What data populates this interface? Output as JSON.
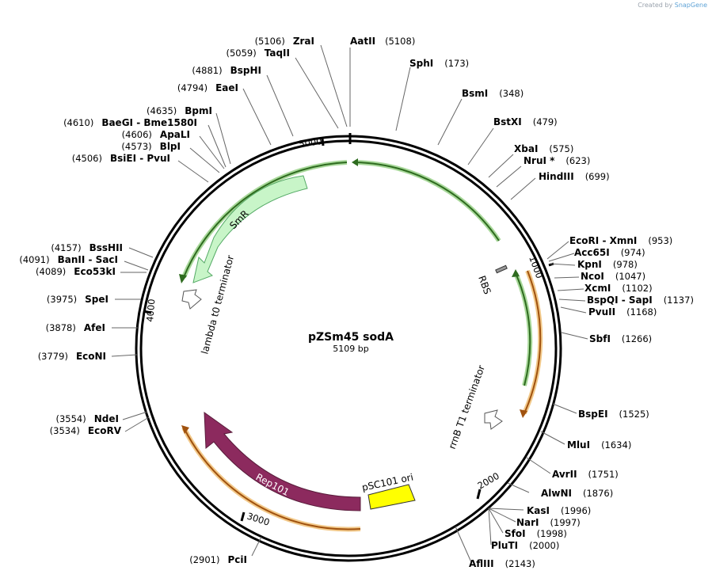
{
  "credit": {
    "prefix": "Created by",
    "brand": "SnapGene"
  },
  "plasmid": {
    "name": "pZSm45 sodA",
    "size": 5109,
    "size_label": "5109 bp"
  },
  "tick_labels": [
    "1000",
    "2000",
    "3000",
    "4000",
    "5000"
  ],
  "colors": {
    "backbone": "#000000",
    "green": "#2e8b2e",
    "orange": "#e8a030",
    "rep": "#8c2a5e",
    "ori": "#ffff00",
    "smr": "#c8f5c8"
  },
  "sites": [
    {
      "label": "AatII",
      "pos": "(5108)"
    },
    {
      "label": "SphI",
      "pos": "(173)"
    },
    {
      "label": "BsmI",
      "pos": "(348)"
    },
    {
      "label": "BstXI",
      "pos": "(479)"
    },
    {
      "label": "XbaI",
      "pos": "(575)"
    },
    {
      "label": "NruI *",
      "pos": "(623)"
    },
    {
      "label": "HindIII",
      "pos": "(699)"
    },
    {
      "label": "EcoRI  - XmnI",
      "pos": "(953)"
    },
    {
      "label": "Acc65I",
      "pos": "(974)"
    },
    {
      "label": "KpnI",
      "pos": "(978)"
    },
    {
      "label": "NcoI",
      "pos": "(1047)"
    },
    {
      "label": "XcmI",
      "pos": "(1102)"
    },
    {
      "label": "BspQI  - SapI",
      "pos": "(1137)"
    },
    {
      "label": "PvuII",
      "pos": "(1168)"
    },
    {
      "label": "SbfI",
      "pos": "(1266)"
    },
    {
      "label": "BspEI",
      "pos": "(1525)"
    },
    {
      "label": "MluI",
      "pos": "(1634)"
    },
    {
      "label": "AvrII",
      "pos": "(1751)"
    },
    {
      "label": "AlwNI",
      "pos": "(1876)"
    },
    {
      "label": "KasI",
      "pos": "(1996)"
    },
    {
      "label": "NarI",
      "pos": "(1997)"
    },
    {
      "label": "SfoI",
      "pos": "(1998)"
    },
    {
      "label": "PluTI",
      "pos": "(2000)"
    },
    {
      "label": "AflIII",
      "pos": "(2143)"
    },
    {
      "label": "ZraI",
      "pos": "(5106)"
    },
    {
      "label": "TaqII",
      "pos": "(5059)"
    },
    {
      "label": "BspHI",
      "pos": "(4881)"
    },
    {
      "label": "EaeI",
      "pos": "(4794)"
    },
    {
      "label": "BpmI",
      "pos": "(4635)"
    },
    {
      "label": "BaeGI  - Bme1580I",
      "pos": "(4610)"
    },
    {
      "label": "ApaLI",
      "pos": "(4606)"
    },
    {
      "label": "BlpI",
      "pos": "(4573)"
    },
    {
      "label": "BsiEI  - PvuI",
      "pos": "(4506)"
    },
    {
      "label": "BssHII",
      "pos": "(4157)"
    },
    {
      "label": "BanII  - SacI",
      "pos": "(4091)"
    },
    {
      "label": "Eco53kI",
      "pos": "(4089)"
    },
    {
      "label": "SpeI",
      "pos": "(3975)"
    },
    {
      "label": "AfeI",
      "pos": "(3878)"
    },
    {
      "label": "EcoNI",
      "pos": "(3779)"
    },
    {
      "label": "NdeI",
      "pos": "(3554)"
    },
    {
      "label": "EcoRV",
      "pos": "(3534)"
    },
    {
      "label": "PciI",
      "pos": "(2901)"
    }
  ],
  "features": [
    {
      "name": "SmR"
    },
    {
      "name": "lambda t0 terminator"
    },
    {
      "name": "RBS"
    },
    {
      "name": "rrnB T1 terminator"
    },
    {
      "name": "Rep101"
    },
    {
      "name": "pSC101 ori"
    }
  ]
}
